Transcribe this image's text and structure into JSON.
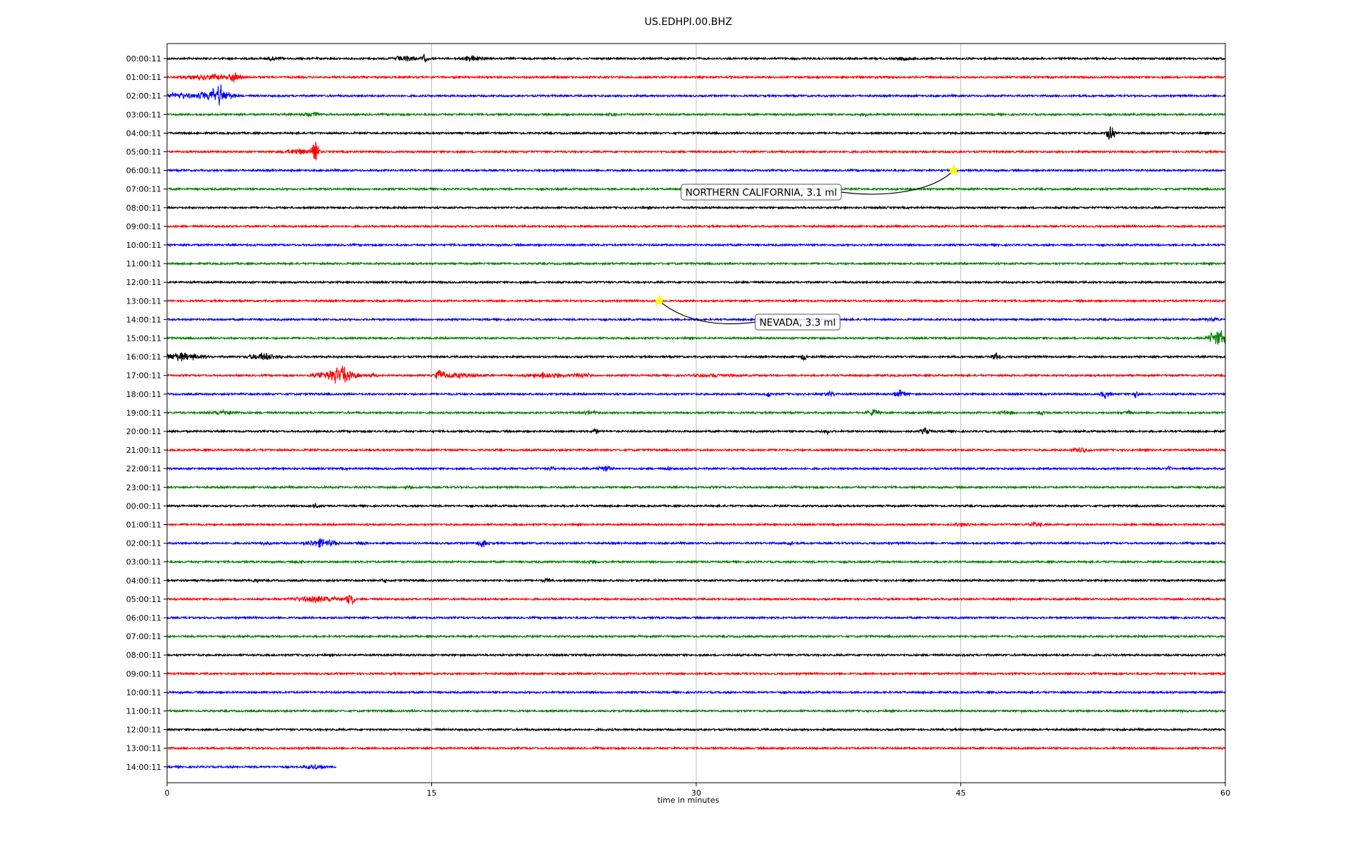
{
  "chart_data": {
    "type": "line",
    "chart_kind": "helicorder",
    "title": "US.EDHPI.00.BHZ",
    "xlabel": "time in minutes",
    "xlim": [
      0,
      60
    ],
    "x_ticks": [
      "0",
      "15",
      "30",
      "45",
      "60"
    ],
    "x_tick_values": [
      0,
      15,
      30,
      45,
      60
    ],
    "grid": "vertical",
    "colors": [
      "#000000",
      "#ff0000",
      "#0000ff",
      "#008000"
    ],
    "row_labels": [
      "00:00:11",
      "01:00:11",
      "02:00:11",
      "03:00:11",
      "04:00:11",
      "05:00:11",
      "06:00:11",
      "07:00:11",
      "08:00:11",
      "09:00:11",
      "10:00:11",
      "11:00:11",
      "12:00:11",
      "13:00:11",
      "14:00:11",
      "15:00:11",
      "16:00:11",
      "17:00:11",
      "18:00:11",
      "19:00:11",
      "20:00:11",
      "21:00:11",
      "22:00:11",
      "23:00:11",
      "00:00:11",
      "01:00:11",
      "02:00:11",
      "03:00:11",
      "04:00:11",
      "05:00:11",
      "06:00:11",
      "07:00:11",
      "08:00:11",
      "09:00:11",
      "10:00:11",
      "11:00:11",
      "12:00:11",
      "13:00:11",
      "14:00:11"
    ],
    "last_row_end_minute": 9.6,
    "events": [
      {
        "label": "NORTHERN CALIFORNIA, 3.1 ml",
        "row": 6,
        "minute": 44.6,
        "marker": "star",
        "marker_color": "#ffff00"
      },
      {
        "label": "NEVADA, 3.3 ml",
        "row": 13,
        "minute": 27.9,
        "marker": "star",
        "marker_color": "#ffff00"
      }
    ],
    "bursts": [
      {
        "row": 0,
        "minute": 6.0,
        "amp": 0.15,
        "dur": 0.8
      },
      {
        "row": 0,
        "minute": 13.5,
        "amp": 0.35,
        "dur": 0.8
      },
      {
        "row": 0,
        "minute": 14.6,
        "amp": 0.45,
        "dur": 0.3
      },
      {
        "row": 0,
        "minute": 17.3,
        "amp": 0.3,
        "dur": 1.0
      },
      {
        "row": 0,
        "minute": 41.8,
        "amp": 0.2,
        "dur": 0.5
      },
      {
        "row": 1,
        "minute": 2.5,
        "amp": 0.3,
        "dur": 2.0
      },
      {
        "row": 1,
        "minute": 3.8,
        "amp": 0.5,
        "dur": 0.5
      },
      {
        "row": 2,
        "minute": 0.5,
        "amp": 0.35,
        "dur": 1.8
      },
      {
        "row": 2,
        "minute": 2.8,
        "amp": 0.9,
        "dur": 1.2
      },
      {
        "row": 2,
        "minute": 3.0,
        "amp": 1.6,
        "dur": 0.15
      },
      {
        "row": 3,
        "minute": 8.2,
        "amp": 0.25,
        "dur": 0.8
      },
      {
        "row": 3,
        "minute": 25.2,
        "amp": 0.3,
        "dur": 0.3
      },
      {
        "row": 3,
        "minute": 39.6,
        "amp": 0.15,
        "dur": 0.3
      },
      {
        "row": 4,
        "minute": 53.5,
        "amp": 1.4,
        "dur": 0.3
      },
      {
        "row": 5,
        "minute": 7.5,
        "amp": 0.3,
        "dur": 1.4
      },
      {
        "row": 5,
        "minute": 8.4,
        "amp": 1.3,
        "dur": 0.3
      },
      {
        "row": 14,
        "minute": 59.2,
        "amp": 0.2,
        "dur": 0.6
      },
      {
        "row": 15,
        "minute": 59.6,
        "amp": 1.0,
        "dur": 0.8
      },
      {
        "row": 16,
        "minute": 0.8,
        "amp": 0.45,
        "dur": 1.8
      },
      {
        "row": 16,
        "minute": 5.5,
        "amp": 0.45,
        "dur": 1.2
      },
      {
        "row": 16,
        "minute": 36.1,
        "amp": 0.45,
        "dur": 0.2
      },
      {
        "row": 16,
        "minute": 47.0,
        "amp": 0.35,
        "dur": 0.4
      },
      {
        "row": 17,
        "minute": 9.6,
        "amp": 0.8,
        "dur": 1.6
      },
      {
        "row": 17,
        "minute": 10.0,
        "amp": 1.7,
        "dur": 0.2
      },
      {
        "row": 17,
        "minute": 11.7,
        "amp": 0.3,
        "dur": 0.3
      },
      {
        "row": 17,
        "minute": 15.5,
        "amp": 0.6,
        "dur": 0.4
      },
      {
        "row": 17,
        "minute": 16.5,
        "amp": 0.25,
        "dur": 2.0
      },
      {
        "row": 17,
        "minute": 21.5,
        "amp": 0.35,
        "dur": 1.5
      },
      {
        "row": 17,
        "minute": 23.5,
        "amp": 0.25,
        "dur": 0.8
      },
      {
        "row": 17,
        "minute": 31.0,
        "amp": 0.15,
        "dur": 1.5
      },
      {
        "row": 18,
        "minute": 34.1,
        "amp": 0.35,
        "dur": 0.2
      },
      {
        "row": 18,
        "minute": 37.6,
        "amp": 0.3,
        "dur": 0.4
      },
      {
        "row": 18,
        "minute": 41.6,
        "amp": 0.4,
        "dur": 0.6
      },
      {
        "row": 18,
        "minute": 53.2,
        "amp": 0.55,
        "dur": 0.4
      },
      {
        "row": 18,
        "minute": 54.9,
        "amp": 0.6,
        "dur": 0.2
      },
      {
        "row": 19,
        "minute": 3.2,
        "amp": 0.2,
        "dur": 1.2
      },
      {
        "row": 19,
        "minute": 24.0,
        "amp": 0.15,
        "dur": 0.6
      },
      {
        "row": 19,
        "minute": 40.1,
        "amp": 0.3,
        "dur": 0.6
      },
      {
        "row": 19,
        "minute": 47.6,
        "amp": 0.25,
        "dur": 0.5
      },
      {
        "row": 19,
        "minute": 49.6,
        "amp": 0.3,
        "dur": 0.3
      },
      {
        "row": 19,
        "minute": 54.5,
        "amp": 0.15,
        "dur": 0.4
      },
      {
        "row": 20,
        "minute": 24.3,
        "amp": 0.25,
        "dur": 0.3
      },
      {
        "row": 20,
        "minute": 37.4,
        "amp": 0.4,
        "dur": 0.2
      },
      {
        "row": 20,
        "minute": 43.0,
        "amp": 0.4,
        "dur": 0.4
      },
      {
        "row": 21,
        "minute": 51.8,
        "amp": 0.3,
        "dur": 0.6
      },
      {
        "row": 22,
        "minute": 21.8,
        "amp": 0.25,
        "dur": 0.3
      },
      {
        "row": 22,
        "minute": 24.8,
        "amp": 0.3,
        "dur": 0.6
      },
      {
        "row": 22,
        "minute": 28.4,
        "amp": 0.2,
        "dur": 0.2
      },
      {
        "row": 22,
        "minute": 56.8,
        "amp": 0.2,
        "dur": 0.2
      },
      {
        "row": 23,
        "minute": 13.7,
        "amp": 0.15,
        "dur": 0.3
      },
      {
        "row": 24,
        "minute": 8.4,
        "amp": 0.2,
        "dur": 0.4
      },
      {
        "row": 25,
        "minute": 45.0,
        "amp": 0.2,
        "dur": 0.6
      },
      {
        "row": 25,
        "minute": 49.2,
        "amp": 0.35,
        "dur": 0.5
      },
      {
        "row": 25,
        "minute": 56.0,
        "amp": 0.15,
        "dur": 0.3
      },
      {
        "row": 26,
        "minute": 5.5,
        "amp": 0.15,
        "dur": 0.6
      },
      {
        "row": 26,
        "minute": 8.8,
        "amp": 0.5,
        "dur": 1.2
      },
      {
        "row": 26,
        "minute": 11.0,
        "amp": 0.2,
        "dur": 0.4
      },
      {
        "row": 26,
        "minute": 17.9,
        "amp": 0.4,
        "dur": 0.5
      },
      {
        "row": 26,
        "minute": 35.3,
        "amp": 0.25,
        "dur": 0.3
      },
      {
        "row": 27,
        "minute": 7.5,
        "amp": 0.2,
        "dur": 0.3
      },
      {
        "row": 27,
        "minute": 24.0,
        "amp": 0.15,
        "dur": 0.6
      },
      {
        "row": 28,
        "minute": 5.0,
        "amp": 0.15,
        "dur": 0.5
      },
      {
        "row": 28,
        "minute": 12.3,
        "amp": 0.2,
        "dur": 0.3
      },
      {
        "row": 28,
        "minute": 21.5,
        "amp": 0.2,
        "dur": 0.4
      },
      {
        "row": 29,
        "minute": 8.5,
        "amp": 0.35,
        "dur": 2.0
      },
      {
        "row": 29,
        "minute": 10.4,
        "amp": 1.2,
        "dur": 0.3
      },
      {
        "row": 38,
        "minute": 8.4,
        "amp": 0.25,
        "dur": 0.8
      }
    ]
  }
}
